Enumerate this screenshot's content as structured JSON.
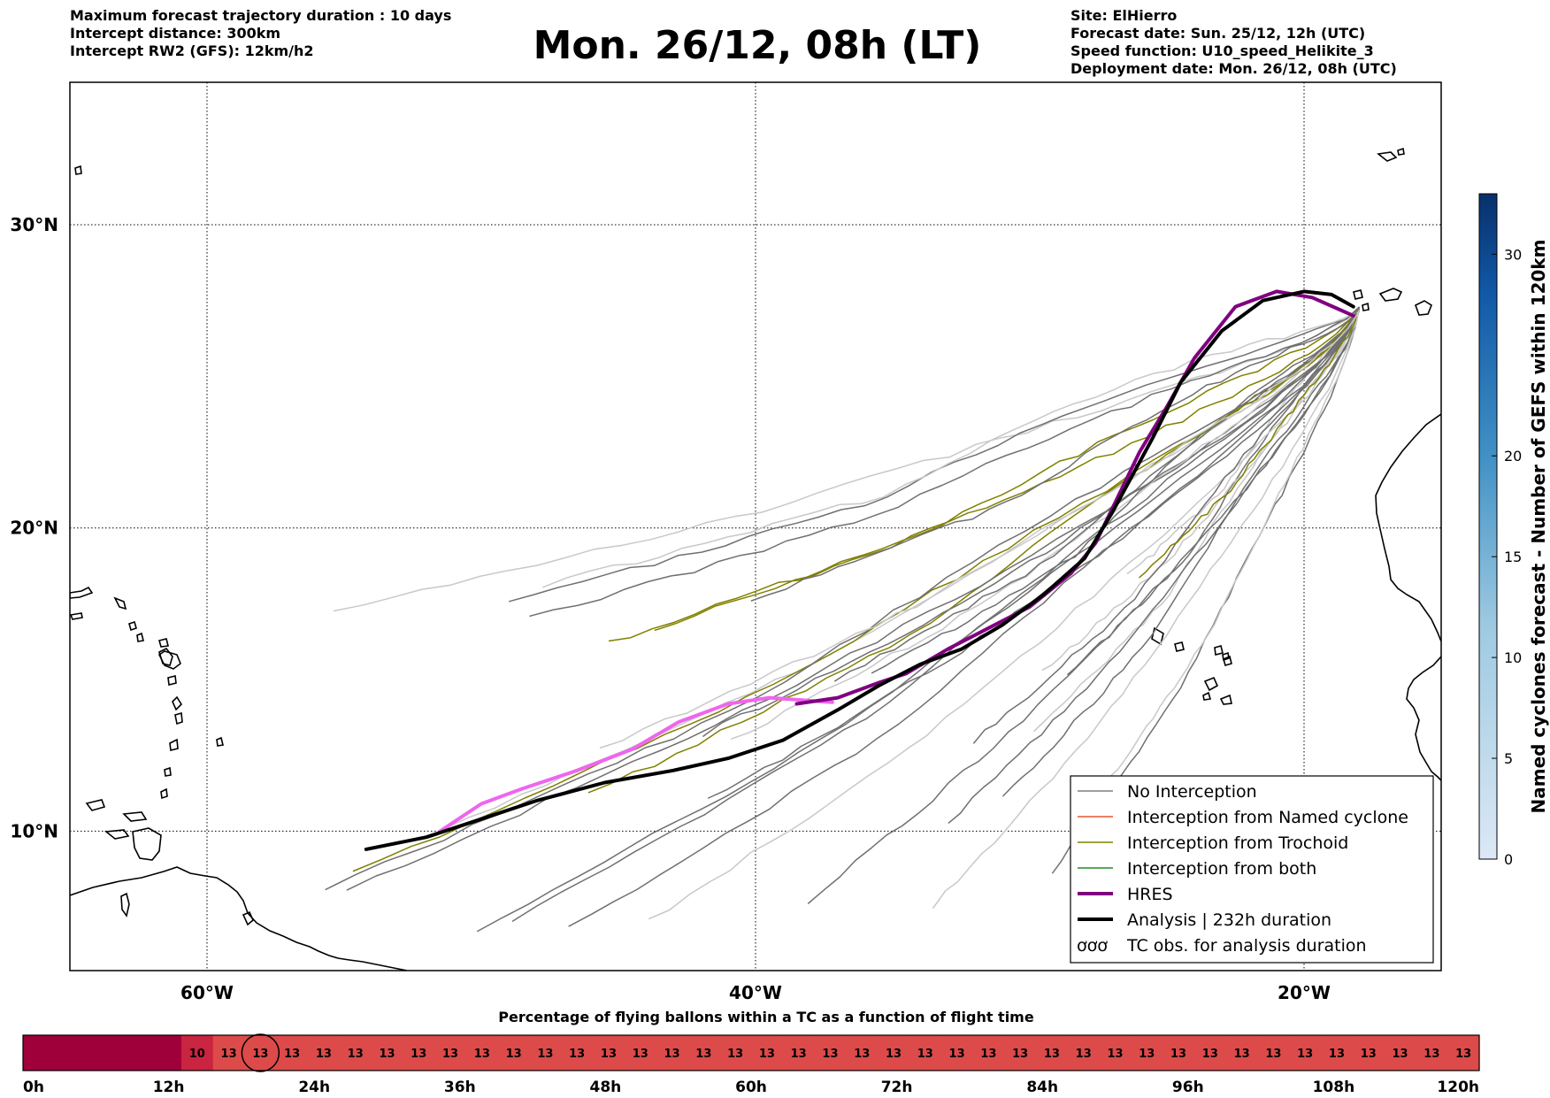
{
  "header": {
    "left": [
      "Maximum forecast trajectory duration : 10 days",
      "Intercept distance: 300km",
      "Intercept RW2 (GFS):  12km/h2"
    ],
    "title": "Mon. 26/12, 08h (LT)",
    "right": [
      "Site: ElHierro",
      "Forecast date: Sun. 25/12, 12h (UTC)",
      "Speed function: U10_speed_Helikite_3",
      "Deployment date: Mon. 26/12, 08h (UTC)"
    ]
  },
  "chart_data": [
    {
      "type": "line",
      "subtype": "trajectory-map",
      "xlabel": "",
      "ylabel": "",
      "x_ticks": [
        "60°W",
        "40°W",
        "20°W"
      ],
      "y_ticks": [
        "30°N",
        "20°N",
        "10°N"
      ],
      "xlim": [
        -65,
        -15
      ],
      "ylim": [
        5.4,
        34.7
      ],
      "grid": true,
      "legend_position": "bottom-right",
      "legend": [
        {
          "label": "No Interception",
          "color": "#808080",
          "width": 1.5,
          "kind": "line"
        },
        {
          "label": "Interception from Named cyclone",
          "color": "#e8552e",
          "width": 1.5,
          "kind": "line"
        },
        {
          "label": "Interception from Trochoid",
          "color": "#808000",
          "width": 1.5,
          "kind": "line"
        },
        {
          "label": "Interception from both",
          "color": "#228b22",
          "width": 1.5,
          "kind": "line"
        },
        {
          "label": "HRES",
          "color": "#800080",
          "width": 4,
          "kind": "line"
        },
        {
          "label": "Analysis | 232h duration",
          "color": "#000000",
          "width": 4,
          "kind": "line"
        },
        {
          "label": "TC obs. for analysis duration",
          "color": "#000000",
          "kind": "symbol",
          "glyph": "ơơơ"
        }
      ],
      "series": [
        {
          "name": "Analysis | 232h duration",
          "color": "#000000",
          "width": 4,
          "x": [
            -18.2,
            -19.0,
            -20.0,
            -21.5,
            -23.0,
            -24.5,
            -25.5,
            -27.0,
            -28.0,
            -29.5,
            -31.0,
            -32.5,
            -34.0,
            -35.5,
            -37.0,
            -39.0,
            -41.0,
            -43.0,
            -45.5,
            -48.0,
            -50.0,
            -52.0,
            -54.2
          ],
          "y": [
            27.3,
            27.7,
            27.8,
            27.5,
            26.5,
            24.8,
            23.0,
            20.5,
            19.0,
            17.8,
            16.8,
            16.0,
            15.5,
            14.8,
            14.0,
            13.0,
            12.4,
            12.0,
            11.6,
            11.0,
            10.4,
            9.8,
            9.4
          ]
        },
        {
          "name": "HRES",
          "color": "#800080",
          "width": 4,
          "x": [
            -18.2,
            -18.7,
            -19.7,
            -21.0,
            -22.5,
            -24.0,
            -25.0,
            -26.0,
            -26.8,
            -27.6,
            -28.5,
            -30.0,
            -31.5,
            -33.0,
            -34.5,
            -35.5,
            -37.0,
            -38.5
          ],
          "y": [
            27.0,
            27.2,
            27.6,
            27.8,
            27.3,
            25.6,
            24.0,
            22.5,
            21.0,
            19.5,
            18.5,
            17.4,
            16.7,
            16.0,
            15.2,
            14.9,
            14.4,
            14.2
          ]
        },
        {
          "name": "",
          "color": "#ee66ee",
          "width": 4,
          "x": [
            -37.2,
            -39.5,
            -41.0,
            -42.8,
            -44.5,
            -46.5,
            -48.5,
            -50.0,
            -51.5
          ],
          "y": [
            14.25,
            14.4,
            14.2,
            13.6,
            12.7,
            12.0,
            11.4,
            10.9,
            10.0
          ]
        }
      ]
    },
    {
      "type": "heatmap",
      "subtype": "colorbar",
      "ylabel": "Named cyclones forecast - Number of GEFS within 120km",
      "ylim": [
        0,
        33
      ],
      "ticks": [
        0,
        5,
        10,
        15,
        20,
        30
      ],
      "colors": {
        "low": "#dce8f6",
        "high": "#08306b"
      }
    },
    {
      "type": "table",
      "subtype": "timeline",
      "title": "Percentage of flying ballons within a TC as a function of flight time",
      "tick_labels": [
        "0h",
        "12h",
        "24h",
        "36h",
        "48h",
        "60h",
        "72h",
        "84h",
        "96h",
        "108h",
        "120h"
      ],
      "first_cells_empty": 5,
      "values": [
        "10",
        "13",
        "13",
        "13",
        "13",
        "13",
        "13",
        "13",
        "13",
        "13",
        "13",
        "13",
        "13",
        "13",
        "13",
        "13",
        "13",
        "13",
        "13",
        "13",
        "13",
        "13",
        "13",
        "13",
        "13",
        "13",
        "13",
        "13",
        "13",
        "13",
        "13",
        "13",
        "13",
        "13",
        "13",
        "13",
        "13",
        "13",
        "13",
        "13",
        "13"
      ],
      "circled_index": 7,
      "colors": {
        "dark": "#a0003a",
        "mid": "#c92440",
        "light": "#dc4a4a"
      }
    }
  ]
}
